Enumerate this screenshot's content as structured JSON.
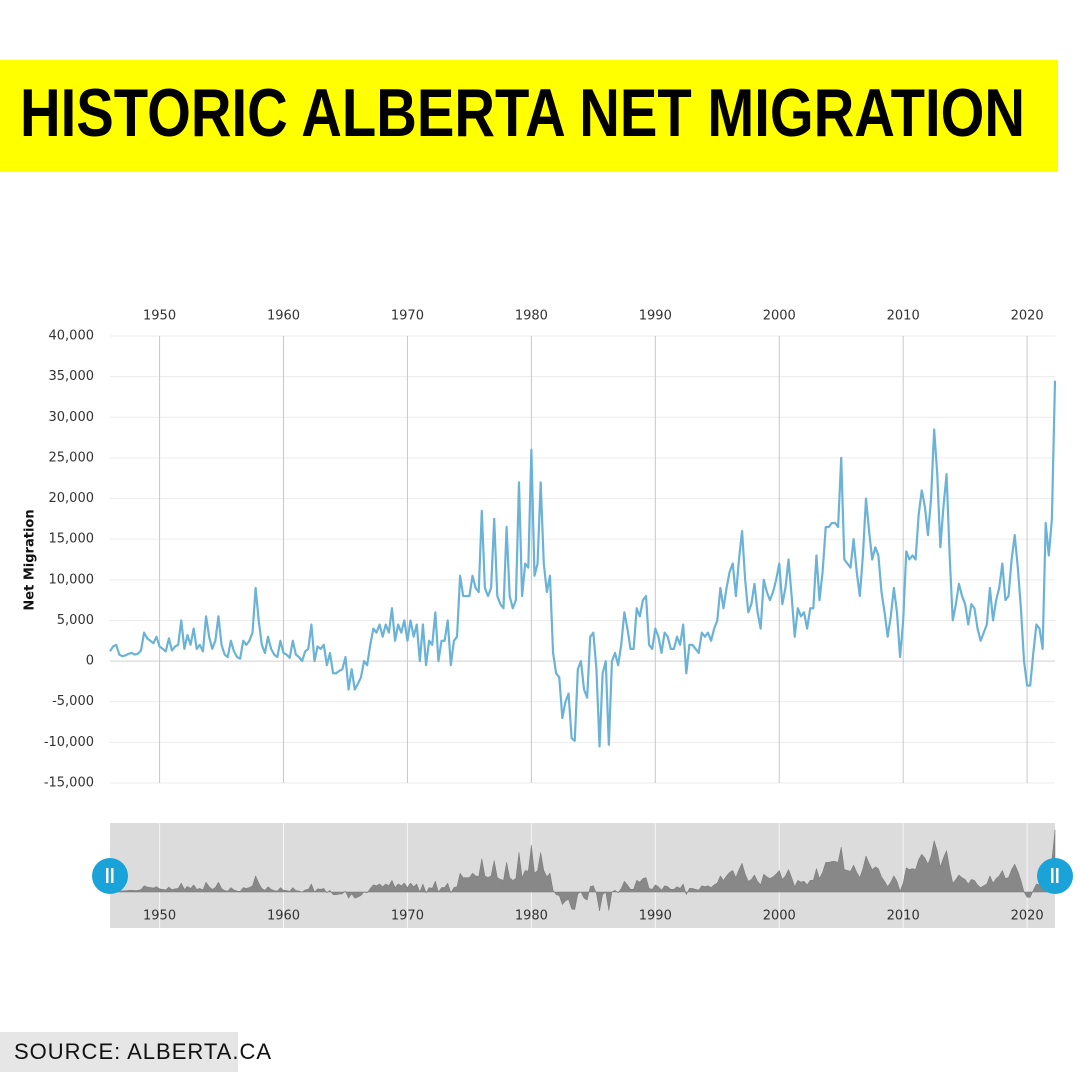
{
  "source": "SOURCE: ALBERTA.CA",
  "chart_data": {
    "type": "line",
    "title": "HISTORIC ALBERTA NET MIGRATION",
    "y_label": "Net Migration",
    "color": "#6bb3d6",
    "navigator_color": "#888888",
    "grid": true,
    "xlim": [
      1946,
      2022.25
    ],
    "xticks": [
      1950,
      1960,
      1970,
      1980,
      1990,
      2000,
      2010,
      2020
    ],
    "ylim": [
      -15000,
      40000
    ],
    "yticks": [
      {
        "value": -15000,
        "label": "-15,000"
      },
      {
        "value": -10000,
        "label": "-10,000"
      },
      {
        "value": -5000,
        "label": "-5,000"
      },
      0,
      {
        "value": 5000,
        "label": "5,000"
      },
      {
        "value": 10000,
        "label": "10,000"
      },
      {
        "value": 15000,
        "label": "15,000"
      },
      {
        "value": 20000,
        "label": "20,000"
      },
      {
        "value": 25000,
        "label": "25,000"
      },
      {
        "value": 30000,
        "label": "30,000"
      },
      {
        "value": 35000,
        "label": "35,000"
      },
      {
        "value": 40000,
        "label": "40,000"
      }
    ],
    "x": [
      1946,
      1946.25,
      1946.5,
      1946.75,
      1947,
      1947.25,
      1947.5,
      1947.75,
      1948,
      1948.25,
      1948.5,
      1948.75,
      1949,
      1949.25,
      1949.5,
      1949.75,
      1950,
      1950.25,
      1950.5,
      1950.75,
      1951,
      1951.25,
      1951.5,
      1951.75,
      1952,
      1952.25,
      1952.5,
      1952.75,
      1953,
      1953.25,
      1953.5,
      1953.75,
      1954,
      1954.25,
      1954.5,
      1954.75,
      1955,
      1955.25,
      1955.5,
      1955.75,
      1956,
      1956.25,
      1956.5,
      1956.75,
      1957,
      1957.25,
      1957.5,
      1957.75,
      1958,
      1958.25,
      1958.5,
      1958.75,
      1959,
      1959.25,
      1959.5,
      1959.75,
      1960,
      1960.25,
      1960.5,
      1960.75,
      1961,
      1961.25,
      1961.5,
      1961.75,
      1962,
      1962.25,
      1962.5,
      1962.75,
      1963,
      1963.25,
      1963.5,
      1963.75,
      1964,
      1964.25,
      1964.5,
      1964.75,
      1965,
      1965.25,
      1965.5,
      1965.75,
      1966,
      1966.25,
      1966.5,
      1966.75,
      1967,
      1967.25,
      1967.5,
      1967.75,
      1968,
      1968.25,
      1968.5,
      1968.75,
      1969,
      1969.25,
      1969.5,
      1969.75,
      1970,
      1970.25,
      1970.5,
      1970.75,
      1971,
      1971.25,
      1971.5,
      1971.75,
      1972,
      1972.25,
      1972.5,
      1972.75,
      1973,
      1973.25,
      1973.5,
      1973.75,
      1974,
      1974.25,
      1974.5,
      1974.75,
      1975,
      1975.25,
      1975.5,
      1975.75,
      1976,
      1976.25,
      1976.5,
      1976.75,
      1977,
      1977.25,
      1977.5,
      1977.75,
      1978,
      1978.25,
      1978.5,
      1978.75,
      1979,
      1979.25,
      1979.5,
      1979.75,
      1980,
      1980.25,
      1980.5,
      1980.75,
      1981,
      1981.25,
      1981.5,
      1981.75,
      1982,
      1982.25,
      1982.5,
      1982.75,
      1983,
      1983.25,
      1983.5,
      1983.75,
      1984,
      1984.25,
      1984.5,
      1984.75,
      1985,
      1985.25,
      1985.5,
      1985.75,
      1986,
      1986.25,
      1986.5,
      1986.75,
      1987,
      1987.25,
      1987.5,
      1987.75,
      1988,
      1988.25,
      1988.5,
      1988.75,
      1989,
      1989.25,
      1989.5,
      1989.75,
      1990,
      1990.25,
      1990.5,
      1990.75,
      1991,
      1991.25,
      1991.5,
      1991.75,
      1992,
      1992.25,
      1992.5,
      1992.75,
      1993,
      1993.25,
      1993.5,
      1993.75,
      1994,
      1994.25,
      1994.5,
      1994.75,
      1995,
      1995.25,
      1995.5,
      1995.75,
      1996,
      1996.25,
      1996.5,
      1996.75,
      1997,
      1997.25,
      1997.5,
      1997.75,
      1998,
      1998.25,
      1998.5,
      1998.75,
      1999,
      1999.25,
      1999.5,
      1999.75,
      2000,
      2000.25,
      2000.5,
      2000.75,
      2001,
      2001.25,
      2001.5,
      2001.75,
      2002,
      2002.25,
      2002.5,
      2002.75,
      2003,
      2003.25,
      2003.5,
      2003.75,
      2004,
      2004.25,
      2004.5,
      2004.75,
      2005,
      2005.25,
      2005.5,
      2005.75,
      2006,
      2006.25,
      2006.5,
      2006.75,
      2007,
      2007.25,
      2007.5,
      2007.75,
      2008,
      2008.25,
      2008.5,
      2008.75,
      2009,
      2009.25,
      2009.5,
      2009.75,
      2010,
      2010.25,
      2010.5,
      2010.75,
      2011,
      2011.25,
      2011.5,
      2011.75,
      2012,
      2012.25,
      2012.5,
      2012.75,
      2013,
      2013.25,
      2013.5,
      2013.75,
      2014,
      2014.25,
      2014.5,
      2014.75,
      2015,
      2015.25,
      2015.5,
      2015.75,
      2016,
      2016.25,
      2016.5,
      2016.75,
      2017,
      2017.25,
      2017.5,
      2017.75,
      2018,
      2018.25,
      2018.5,
      2018.75,
      2019,
      2019.25,
      2019.5,
      2019.75,
      2020,
      2020.25,
      2020.5,
      2020.75,
      2021,
      2021.25,
      2021.5,
      2021.75,
      2022,
      2022.25
    ],
    "values": [
      1200,
      1800,
      2000,
      800,
      600,
      700,
      900,
      1000,
      800,
      900,
      1300,
      3500,
      2800,
      2500,
      2200,
      3000,
      1800,
      1500,
      1200,
      2800,
      1300,
      1800,
      2000,
      5000,
      1500,
      3200,
      2000,
      4000,
      1500,
      2000,
      1200,
      5500,
      3000,
      1500,
      2500,
      5500,
      2000,
      800,
      500,
      2500,
      1200,
      500,
      300,
      2500,
      2000,
      2500,
      3500,
      9000,
      5000,
      2000,
      1000,
      3000,
      1500,
      800,
      500,
      2500,
      1000,
      800,
      400,
      2500,
      800,
      500,
      0,
      1200,
      1500,
      4500,
      0,
      1800,
      1500,
      2000,
      -500,
      1000,
      -1500,
      -1500,
      -1200,
      -1000,
      500,
      -3500,
      -1000,
      -3500,
      -2800,
      -2000,
      0,
      -500,
      2000,
      4000,
      3500,
      4500,
      3000,
      4500,
      3500,
      6500,
      2500,
      4500,
      3500,
      5000,
      2500,
      5000,
      3000,
      4500,
      0,
      4500,
      -500,
      2500,
      2000,
      6000,
      0,
      2500,
      2500,
      5000,
      -500,
      2500,
      3000,
      10500,
      8000,
      8000,
      8000,
      10500,
      9000,
      8500,
      18500,
      9000,
      8000,
      9000,
      17500,
      8000,
      7000,
      6500,
      16500,
      8000,
      6500,
      7500,
      22000,
      8000,
      12000,
      11500,
      26000,
      10500,
      12000,
      22000,
      12000,
      8500,
      10500,
      1000,
      -1500,
      -2000,
      -7000,
      -5000,
      -4000,
      -9500,
      -9800,
      -1000,
      0,
      -3500,
      -4500,
      3000,
      3500,
      -1000,
      -10500,
      -1500,
      0,
      -10300,
      0,
      1000,
      -500,
      2000,
      6000,
      4000,
      1500,
      1500,
      6500,
      5500,
      7500,
      8000,
      2000,
      1500,
      4000,
      3000,
      1000,
      3500,
      3000,
      1500,
      1500,
      3000,
      2000,
      4500,
      -1500,
      2000,
      2000,
      1500,
      1000,
      3500,
      3000,
      3500,
      2500,
      4000,
      5000,
      9000,
      6500,
      9000,
      11000,
      12000,
      8000,
      12500,
      16000,
      10000,
      6000,
      7000,
      9500,
      6000,
      4000,
      10000,
      8500,
      7500,
      8500,
      10000,
      12000,
      7000,
      9000,
      12500,
      8000,
      3000,
      6500,
      5500,
      6000,
      4000,
      6500,
      6500,
      13000,
      7500,
      11000,
      16500,
      16500,
      17000,
      17000,
      16500,
      25000,
      12500,
      12000,
      11500,
      15000,
      11000,
      8000,
      13000,
      20000,
      16000,
      12500,
      14000,
      13000,
      8500,
      6000,
      3000,
      5500,
      9000,
      6000,
      500,
      5000,
      13500,
      12500,
      13000,
      12500,
      18000,
      21000,
      19000,
      15500,
      20000,
      28500,
      23000,
      14000,
      19000,
      23000,
      13000,
      5000,
      7000,
      9500,
      8000,
      7000,
      4500,
      7000,
      6500,
      4000,
      2500,
      3500,
      4500,
      9000,
      5000,
      7500,
      9000,
      12000,
      7500,
      8000,
      12500,
      15500,
      11500,
      6500,
      0,
      -3000,
      -3000,
      1000,
      4500,
      4000,
      1500,
      17000,
      13000,
      17500,
      34500
    ]
  }
}
